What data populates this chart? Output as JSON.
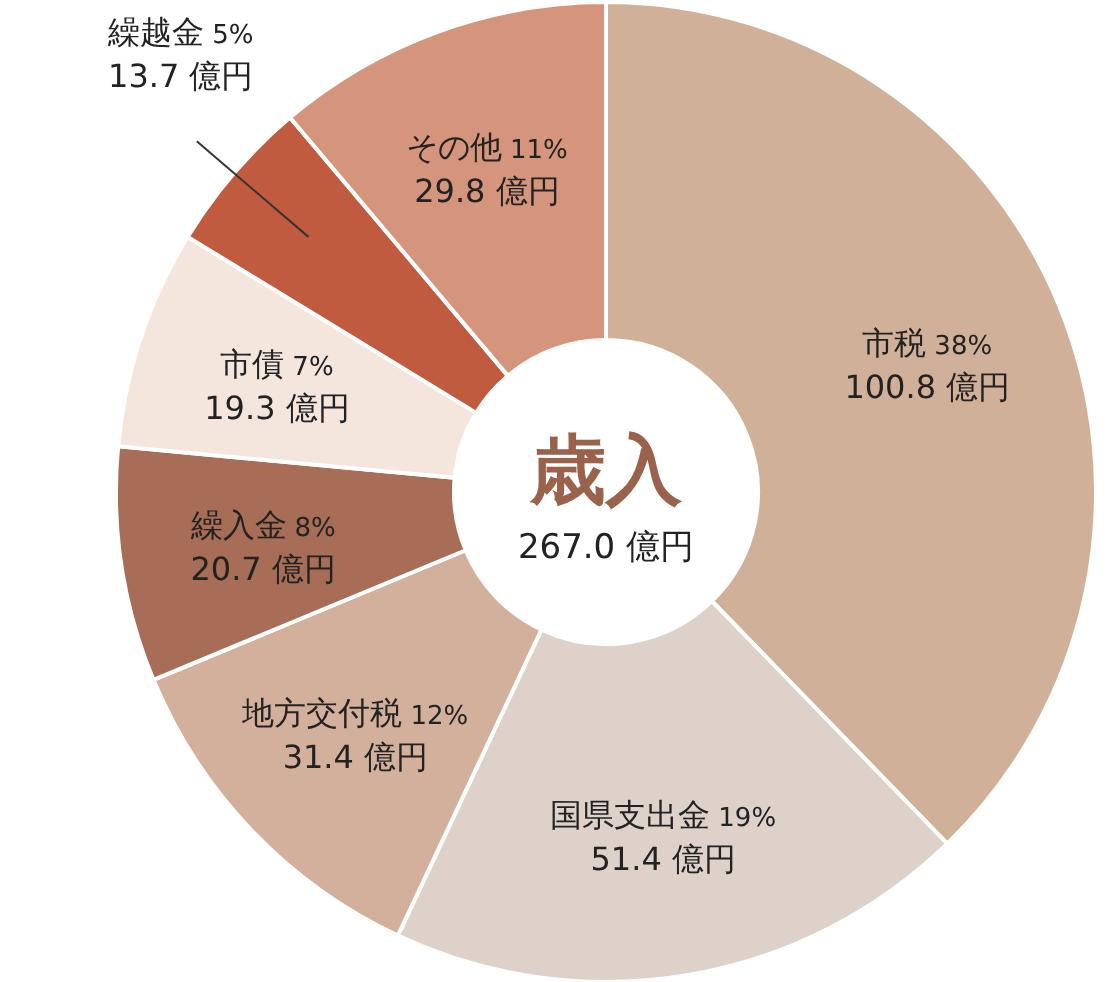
{
  "chart_data": {
    "type": "donut",
    "title": "歳入",
    "subtitle": "267.0 億円",
    "categories": [
      "市税",
      "国県支出金",
      "地方交付税",
      "繰入金",
      "市債",
      "繰越金",
      "その他"
    ],
    "values": [
      100.8,
      51.4,
      31.4,
      20.7,
      19.3,
      13.7,
      29.8
    ],
    "colors": [
      "#d1b09a",
      "#ddd1c9",
      "#d3b09b",
      "#a76d57",
      "#f4e5dd",
      "#c15b3f",
      "#d5957c"
    ],
    "value_labels": [
      "38%\n100.8 億円",
      "19%\n51.4 億円",
      "12%\n31.4 億円",
      "8%\n20.7 億円",
      "7%\n19.3 億円",
      "5%\n13.7 億円",
      "11%\n29.8 億円"
    ]
  }
}
